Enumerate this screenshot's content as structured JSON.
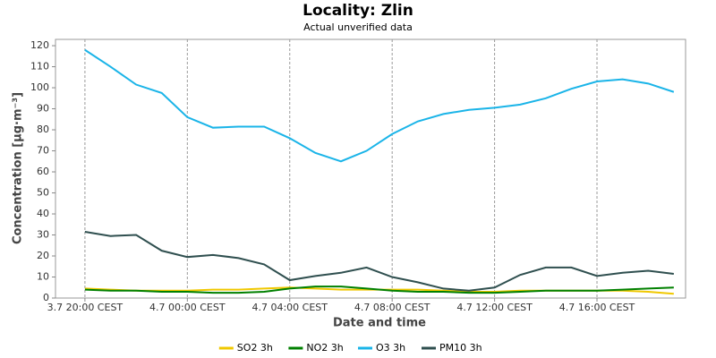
{
  "chart_data": {
    "type": "line",
    "title": "Locality: Zlin",
    "subtitle": "Actual unverified data",
    "x_label": "Date and time",
    "y_label": "Concentration [µg·m⁻³]",
    "x": [
      20,
      21,
      22,
      23,
      24,
      25,
      26,
      27,
      28,
      29,
      30,
      31,
      32,
      33,
      34,
      35,
      36,
      37,
      38,
      39,
      40,
      41,
      42,
      43
    ],
    "xlim": [
      18.85,
      43.46
    ],
    "xticks": [
      {
        "value": 20,
        "label": "3.7 20:00 CEST"
      },
      {
        "value": 24,
        "label": "4.7 00:00 CEST"
      },
      {
        "value": 28,
        "label": "4.7 04:00 CEST"
      },
      {
        "value": 32,
        "label": "4.7 08:00 CEST"
      },
      {
        "value": 36,
        "label": "4.7 12:00 CEST"
      },
      {
        "value": 40,
        "label": "4.7 16:00 CEST"
      }
    ],
    "ylim": [
      0,
      123
    ],
    "yticks": [
      0,
      10,
      20,
      30,
      40,
      50,
      60,
      70,
      80,
      90,
      100,
      110,
      120
    ],
    "grid": true,
    "legend": "bottom",
    "series": [
      {
        "name": "SO2 3h",
        "color": "#f0c800",
        "values": [
          4.5,
          4,
          3.5,
          3.5,
          3.5,
          4,
          4,
          4.5,
          5,
          4.5,
          4,
          4,
          4,
          4,
          3.5,
          3,
          3,
          3.5,
          3.5,
          3.5,
          3.5,
          3.5,
          3,
          2
        ]
      },
      {
        "name": "NO2 3h",
        "color": "#008000",
        "values": [
          4,
          3.5,
          3.5,
          3,
          3,
          2.5,
          2.5,
          3,
          4.5,
          5.5,
          5.5,
          4.5,
          3.5,
          3,
          3,
          2.5,
          2.5,
          3,
          3.5,
          3.5,
          3.5,
          4,
          4.5,
          5
        ]
      },
      {
        "name": "O3 3h",
        "color": "#1ab4e8",
        "values": [
          118,
          110,
          101.5,
          97.5,
          86,
          81,
          81.5,
          81.5,
          76,
          69,
          65,
          70,
          78,
          84,
          87.5,
          89.5,
          90.5,
          92,
          95,
          99.5,
          103,
          104,
          102,
          98
        ]
      },
      {
        "name": "PM10 3h",
        "color": "#2f4f4f",
        "values": [
          31.5,
          29.5,
          30,
          22.5,
          19.5,
          20.5,
          19,
          16,
          8.5,
          10.5,
          12,
          14.5,
          10,
          7.5,
          4.5,
          3.5,
          5,
          11,
          14.5,
          14.5,
          10.5,
          12,
          13,
          11.5
        ]
      }
    ]
  }
}
